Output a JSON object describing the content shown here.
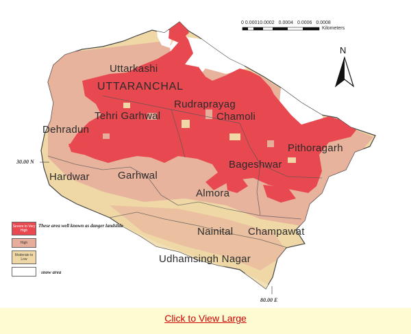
{
  "map": {
    "colors": {
      "severe": "#e8484f",
      "high": "#e6ad9b",
      "moderate": "#efd8a6",
      "snow": "#ffffff",
      "border": "#444444"
    },
    "scale": {
      "ticks": [
        "0",
        "0.0001",
        "0.0002",
        "0.0004",
        "0.0006",
        "0.0008"
      ],
      "unit": "Kilometers"
    },
    "north_label": "N",
    "state_name": "UTTARANCHAL",
    "districts": {
      "uttarkashi": "Uttarkashi",
      "rudraprayag": "Rudraprayag",
      "chamoli": "Chamoli",
      "tehri": "Tehri Garhwal",
      "dehradun": "Dehradun",
      "pithoragarh": "Pithoragarh",
      "bageshwar": "Bageshwar",
      "hardwar": "Hardwar",
      "garhwal": "Garhwal",
      "almora": "Almora",
      "nainital": "Nainital",
      "champawat": "Champawat",
      "udhamsingh": "Udhamsingh Nagar"
    },
    "latitude_label": "30.00 N",
    "longitude_label": "80.00 E"
  },
  "legend": {
    "severe_label": "Severe to Very High",
    "severe_note": "These area well known as danger landslide",
    "high_label": "High",
    "moderate_label": "Moderate to Low",
    "snow_note": "snow area"
  },
  "link": {
    "text": "Click to View Large"
  }
}
